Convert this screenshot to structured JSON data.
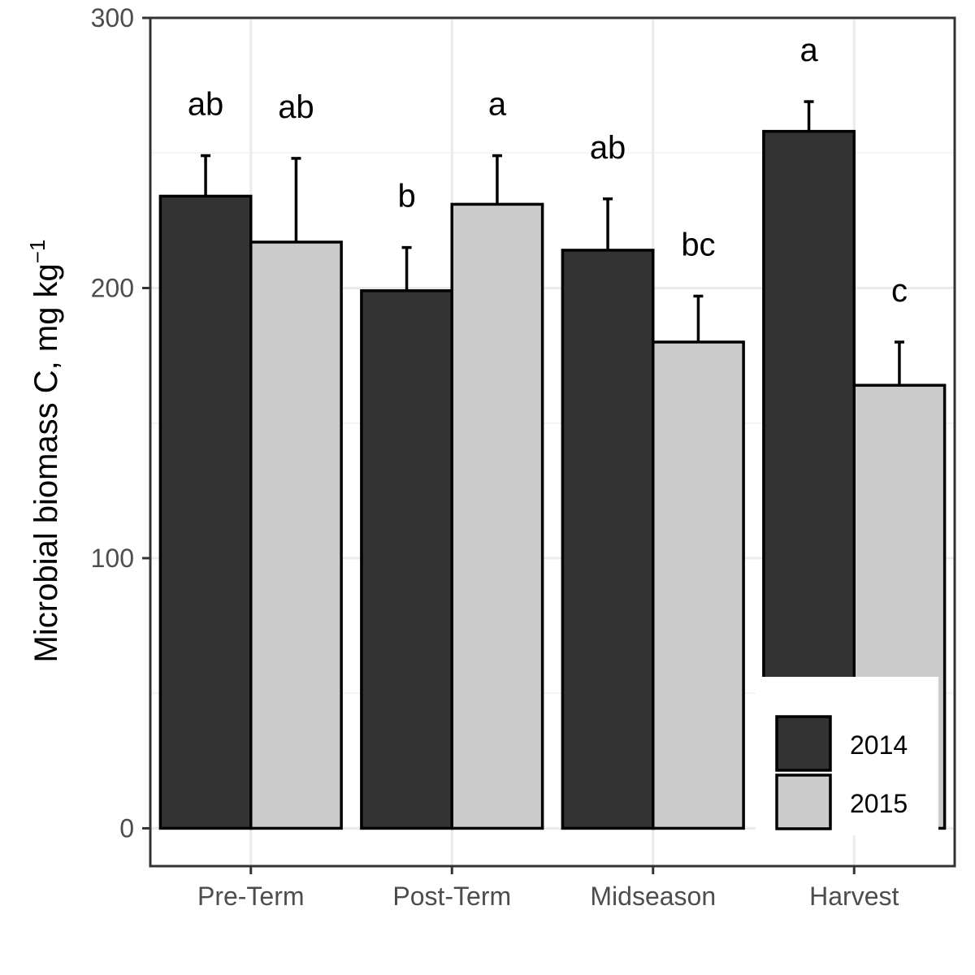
{
  "chart_data": {
    "type": "bar",
    "title": "",
    "xlabel": "",
    "ylabel": "Microbial biomass C, mg kg",
    "ylabel_superscript": "−1",
    "ylim": [
      -14,
      300
    ],
    "y_ticks": [
      "0",
      "100",
      "200",
      "300"
    ],
    "y_tick_values": [
      0,
      100,
      200,
      300
    ],
    "categories": [
      "Pre-Term",
      "Post-Term",
      "Midseason",
      "Harvest"
    ],
    "grid": true,
    "legend_position": "bottom-right",
    "series": [
      {
        "name": "2014",
        "color": "#333333",
        "values": [
          234,
          199,
          214,
          258
        ],
        "error_upper": [
          249,
          215,
          233,
          269
        ],
        "labels": [
          "ab",
          "b",
          "ab",
          "a"
        ]
      },
      {
        "name": "2015",
        "color": "#cccccc",
        "values": [
          217,
          231,
          180,
          164
        ],
        "error_upper": [
          248,
          249,
          197,
          180
        ],
        "labels": [
          "ab",
          "a",
          "bc",
          "c"
        ]
      }
    ]
  }
}
